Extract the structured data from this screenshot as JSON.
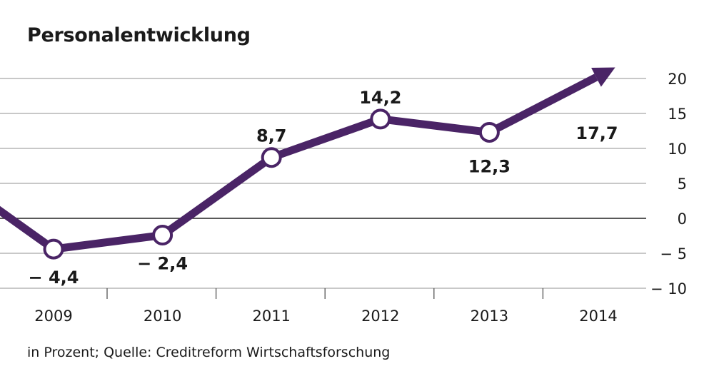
{
  "chart_data": {
    "type": "line",
    "title": "Personalentwicklung",
    "note": "in Prozent; Quelle: Creditreform Wirtschaftsforschung",
    "xlabel": "",
    "ylabel": "",
    "categories": [
      "2009",
      "2010",
      "2011",
      "2012",
      "2013",
      "2014"
    ],
    "series": [
      {
        "values": [
          -4.4,
          -2.4,
          8.7,
          14.2,
          12.3,
          17.7
        ],
        "labels": [
          "− 4,4",
          "− 2,4",
          "8,7",
          "14,2",
          "12,3",
          "17,7"
        ],
        "color": "#4a2466"
      }
    ],
    "ylim": [
      -10,
      20
    ],
    "yticks": [
      20,
      15,
      10,
      5,
      0,
      -5,
      -10
    ],
    "ytick_labels": [
      "20",
      "15",
      "10",
      "5",
      "0",
      "− 5",
      "− 10"
    ],
    "y_axis_side": "right",
    "grid": true,
    "last_point_style": "arrow",
    "line_extends_left_from": 0
  },
  "colors": {
    "line": "#4a2466",
    "grid": "#a7a7a7",
    "zero_line": "#222222",
    "axis": "#555555",
    "marker_fill": "#ffffff"
  }
}
